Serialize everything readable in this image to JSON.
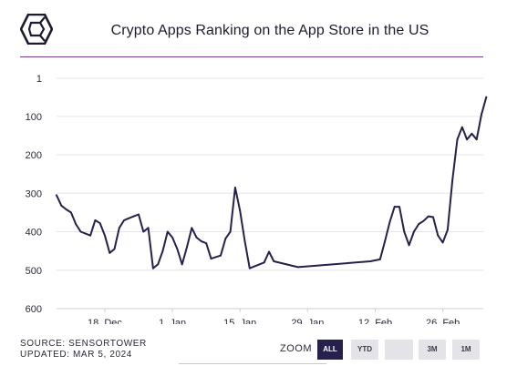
{
  "header": {
    "title": "Crypto Apps Ranking on the App Store in the US"
  },
  "footer": {
    "source": "SOURCE: SENSORTOWER",
    "updated": "UPDATED: MAR 5, 2024"
  },
  "zoom": {
    "label": "ZOOM",
    "buttons": [
      "ALL",
      "YTD",
      "",
      "3M",
      "1M"
    ],
    "active": "ALL"
  },
  "colors": {
    "line": "#25214c",
    "accent_rule": "#7b3c8c",
    "grid": "#e6e6ea"
  },
  "chart_data": {
    "type": "line",
    "title": "Crypto Apps Ranking on the App Store in the US",
    "xlabel": "",
    "ylabel": "",
    "y_reversed": true,
    "ylim": [
      1,
      600
    ],
    "y_ticks": [
      1,
      100,
      200,
      300,
      400,
      500,
      600
    ],
    "x_tick_labels": [
      {
        "date": "2023-12-18",
        "label": "18. Dec"
      },
      {
        "date": "2024-01-01",
        "label": "1. Jan"
      },
      {
        "date": "2024-01-15",
        "label": "15. Jan"
      },
      {
        "date": "2024-01-29",
        "label": "29. Jan"
      },
      {
        "date": "2024-02-12",
        "label": "12. Feb"
      },
      {
        "date": "2024-02-26",
        "label": "26. Feb"
      }
    ],
    "xlim": [
      "2023-12-08",
      "2024-03-05"
    ],
    "grid": true,
    "series": [
      {
        "points": [
          [
            "2023-12-08",
            305
          ],
          [
            "2023-12-09",
            332
          ],
          [
            "2023-12-10",
            342
          ],
          [
            "2023-12-11",
            350
          ],
          [
            "2023-12-12",
            380
          ],
          [
            "2023-12-13",
            400
          ],
          [
            "2023-12-14",
            405
          ],
          [
            "2023-12-15",
            410
          ],
          [
            "2023-12-16",
            370
          ],
          [
            "2023-12-17",
            378
          ],
          [
            "2023-12-18",
            410
          ],
          [
            "2023-12-19",
            455
          ],
          [
            "2023-12-20",
            445
          ],
          [
            "2023-12-21",
            390
          ],
          [
            "2023-12-22",
            370
          ],
          [
            "2023-12-23",
            365
          ],
          [
            "2023-12-24",
            360
          ],
          [
            "2023-12-25",
            355
          ],
          [
            "2023-12-26",
            400
          ],
          [
            "2023-12-27",
            390
          ],
          [
            "2023-12-28",
            495
          ],
          [
            "2023-12-29",
            485
          ],
          [
            "2023-12-30",
            450
          ],
          [
            "2023-12-31",
            400
          ],
          [
            "2024-01-01",
            415
          ],
          [
            "2024-01-02",
            445
          ],
          [
            "2024-01-03",
            485
          ],
          [
            "2024-01-04",
            440
          ],
          [
            "2024-01-05",
            390
          ],
          [
            "2024-01-06",
            415
          ],
          [
            "2024-01-07",
            425
          ],
          [
            "2024-01-08",
            430
          ],
          [
            "2024-01-09",
            470
          ],
          [
            "2024-01-11",
            462
          ],
          [
            "2024-01-12",
            418
          ],
          [
            "2024-01-13",
            400
          ],
          [
            "2024-01-14",
            285
          ],
          [
            "2024-01-15",
            345
          ],
          [
            "2024-01-16",
            425
          ],
          [
            "2024-01-17",
            495
          ],
          [
            "2024-01-20",
            480
          ],
          [
            "2024-01-21",
            452
          ],
          [
            "2024-01-22",
            477
          ],
          [
            "2024-01-27",
            492
          ],
          [
            "2024-02-11",
            477
          ],
          [
            "2024-02-13",
            472
          ],
          [
            "2024-02-14",
            425
          ],
          [
            "2024-02-15",
            375
          ],
          [
            "2024-02-16",
            335
          ],
          [
            "2024-02-17",
            335
          ],
          [
            "2024-02-18",
            400
          ],
          [
            "2024-02-19",
            435
          ],
          [
            "2024-02-20",
            400
          ],
          [
            "2024-02-21",
            380
          ],
          [
            "2024-02-22",
            372
          ],
          [
            "2024-02-23",
            360
          ],
          [
            "2024-02-24",
            362
          ],
          [
            "2024-02-25",
            410
          ],
          [
            "2024-02-26",
            428
          ],
          [
            "2024-02-27",
            395
          ],
          [
            "2024-02-28",
            265
          ],
          [
            "2024-02-29",
            160
          ],
          [
            "2024-03-01",
            128
          ],
          [
            "2024-03-02",
            160
          ],
          [
            "2024-03-03",
            145
          ],
          [
            "2024-03-04",
            160
          ],
          [
            "2024-03-05",
            95
          ],
          [
            "2024-03-06",
            50
          ]
        ]
      }
    ]
  }
}
